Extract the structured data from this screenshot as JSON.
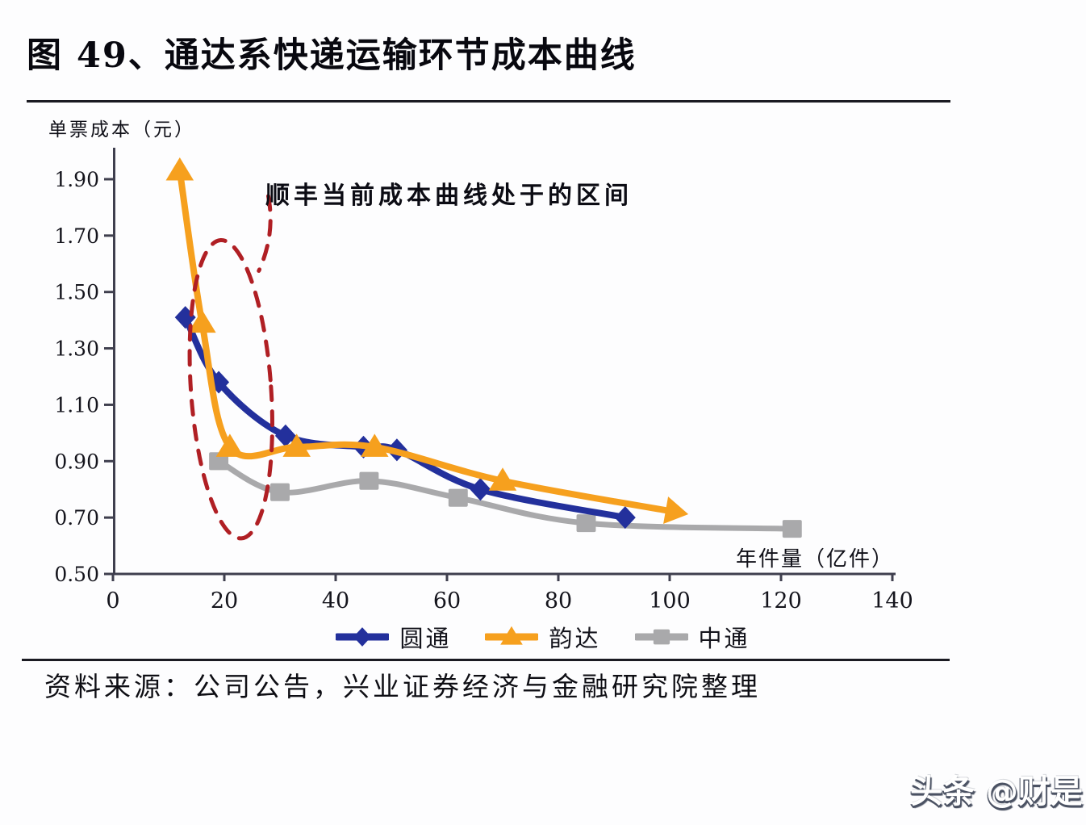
{
  "page": {
    "title": "图 49、通达系快递运输环节成本曲线",
    "source": "资料来源：公司公告，兴业证券经济与金融研究院整理",
    "watermark": "头条 @财是"
  },
  "chart_data": {
    "type": "line",
    "title": "图 49、通达系快递运输环节成本曲线",
    "ylabel": "单票成本（元）",
    "xlabel": "年件量（亿件）",
    "xlim": [
      0,
      140
    ],
    "ylim": [
      0.5,
      1.9
    ],
    "x_ticks": [
      0,
      20,
      40,
      60,
      80,
      100,
      120,
      140
    ],
    "y_ticks": [
      0.5,
      0.7,
      0.9,
      1.1,
      1.3,
      1.5,
      1.7,
      1.9
    ],
    "grid": false,
    "legend_position": "bottom",
    "axis_color": "#3f3f4e",
    "text_color": "#14141c",
    "annotation": {
      "text": "顺丰当前成本曲线处于的区间",
      "color": "#b01f24",
      "ellipse": {
        "cx": 21.2,
        "cy": 1.155,
        "rx": 7.2,
        "ry": 0.53,
        "rotation_deg": -4
      },
      "leader": {
        "from": [
          27.9,
          1.84
        ],
        "via": [
          29.2,
          1.705
        ],
        "to": [
          26.2,
          1.575
        ]
      }
    },
    "series": [
      {
        "name": "中通",
        "color": "#a9a9ab",
        "marker": "square",
        "points": [
          [
            19,
            0.9
          ],
          [
            30,
            0.79
          ],
          [
            46,
            0.83
          ],
          [
            62,
            0.77
          ],
          [
            85,
            0.68
          ],
          [
            122,
            0.66
          ]
        ]
      },
      {
        "name": "圆通",
        "color": "#23309c",
        "marker": "diamond",
        "points": [
          [
            13,
            1.41
          ],
          [
            19,
            1.18
          ],
          [
            31,
            0.99
          ],
          [
            45,
            0.95
          ],
          [
            51,
            0.94
          ],
          [
            66,
            0.8
          ],
          [
            92,
            0.7
          ]
        ]
      },
      {
        "name": "韵达",
        "color": "#f6a01e",
        "marker": "triangle",
        "points": [
          [
            12,
            1.93
          ],
          [
            16,
            1.39
          ],
          [
            21,
            0.95
          ],
          [
            33,
            0.95
          ],
          [
            47,
            0.95
          ],
          [
            70,
            0.83
          ],
          [
            101,
            0.72
          ]
        ]
      }
    ],
    "legend_order": [
      "圆通",
      "韵达",
      "中通"
    ]
  }
}
